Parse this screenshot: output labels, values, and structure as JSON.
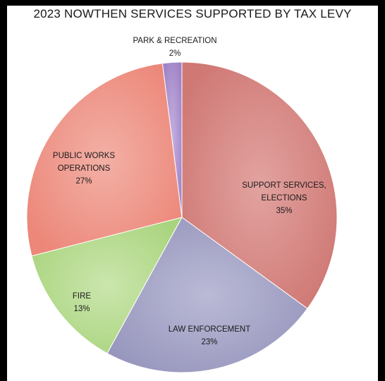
{
  "chart_data": {
    "type": "pie",
    "title": "2023 NOWTHEN SERVICES SUPPORTED BY TAX LEVY",
    "slices": [
      {
        "label_lines": [
          "SUPPORT SERVICES,",
          "ELECTIONS"
        ],
        "percent_label": "35%",
        "value": 35,
        "color": "#d58a86"
      },
      {
        "label_lines": [
          "LAW ENFORCEMENT"
        ],
        "percent_label": "23%",
        "value": 23,
        "color": "#a7a6c8"
      },
      {
        "label_lines": [
          "FIRE"
        ],
        "percent_label": "13%",
        "value": 13,
        "color": "#bcdd97"
      },
      {
        "label_lines": [
          "PUBLIC WORKS",
          "OPERATIONS"
        ],
        "percent_label": "27%",
        "value": 27,
        "color": "#ef9a8e"
      },
      {
        "label_lines": [
          "PARK & RECREATION"
        ],
        "percent_label": "2%",
        "value": 2,
        "color": "#b39ad4"
      }
    ]
  }
}
